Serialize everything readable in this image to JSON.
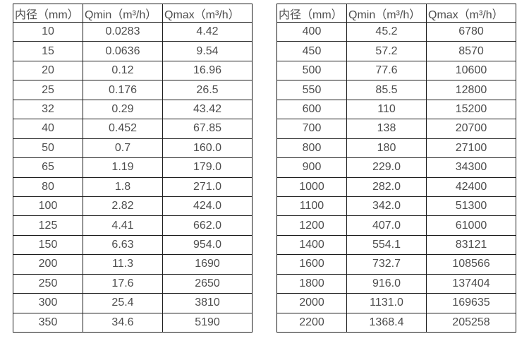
{
  "colors": {
    "background": "#ffffff",
    "text": "#4d4d4d",
    "border": "#1c1c1c"
  },
  "tables": [
    {
      "name": "flow-table-small-diameters",
      "headers": [
        "内径（mm）",
        "Qmin（m³/h）",
        "Qmax（m³/h）"
      ],
      "rows": [
        [
          "10",
          "0.0283",
          "4.42"
        ],
        [
          "15",
          "0.0636",
          "9.54"
        ],
        [
          "20",
          "0.12",
          "16.96"
        ],
        [
          "25",
          "0.176",
          "26.5"
        ],
        [
          "32",
          "0.29",
          "43.42"
        ],
        [
          "40",
          "0.452",
          "67.85"
        ],
        [
          "50",
          "0.7",
          "160.0"
        ],
        [
          "65",
          "1.19",
          "179.0"
        ],
        [
          "80",
          "1.8",
          "271.0"
        ],
        [
          "100",
          "2.82",
          "424.0"
        ],
        [
          "125",
          "4.41",
          "662.0"
        ],
        [
          "150",
          "6.63",
          "954.0"
        ],
        [
          "200",
          "11.3",
          "1690"
        ],
        [
          "250",
          "17.6",
          "2650"
        ],
        [
          "300",
          "25.4",
          "3810"
        ],
        [
          "350",
          "34.6",
          "5190"
        ]
      ]
    },
    {
      "name": "flow-table-large-diameters",
      "headers": [
        "内径（mm）",
        "Qmin（m³/h）",
        "Qmax（m³/h）"
      ],
      "rows": [
        [
          "400",
          "45.2",
          "6780"
        ],
        [
          "450",
          "57.2",
          "8570"
        ],
        [
          "500",
          "77.6",
          "10600"
        ],
        [
          "550",
          "85.5",
          "12800"
        ],
        [
          "600",
          "110",
          "15200"
        ],
        [
          "700",
          "138",
          "20700"
        ],
        [
          "800",
          "180",
          "27100"
        ],
        [
          "900",
          "229.0",
          "34300"
        ],
        [
          "1000",
          "282.0",
          "42400"
        ],
        [
          "1100",
          "342.0",
          "51300"
        ],
        [
          "1200",
          "407.0",
          "61000"
        ],
        [
          "1400",
          "554.1",
          "83121"
        ],
        [
          "1600",
          "732.7",
          "108566"
        ],
        [
          "1800",
          "916.0",
          "137404"
        ],
        [
          "2000",
          "1131.0",
          "169635"
        ],
        [
          "2200",
          "1368.4",
          "205258"
        ]
      ]
    }
  ]
}
